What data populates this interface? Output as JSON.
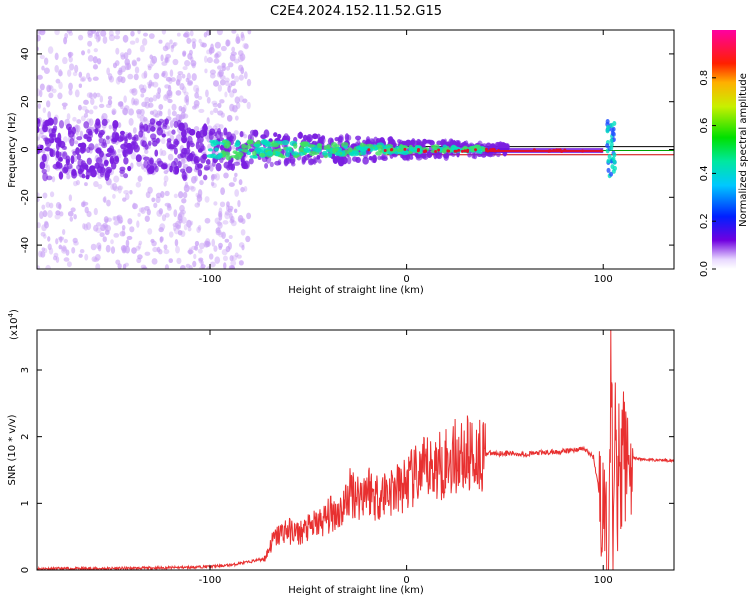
{
  "title": "C2E4.2024.152.11.52.G15",
  "spectrogram": {
    "xlabel": "Height of straight line (km)",
    "ylabel": "Frequency (Hz)",
    "xlim": [
      -188,
      136
    ],
    "ylim": [
      -50,
      50
    ],
    "xticks": [
      -100,
      0,
      100
    ],
    "xtick_labels": [
      "-100",
      "0",
      "100"
    ],
    "yticks": [
      -40,
      -20,
      0,
      20,
      40
    ],
    "ytick_labels": [
      "-40",
      "-20",
      "0",
      "20",
      "40"
    ],
    "colorbar": {
      "label": "Normalized spectral amplitude",
      "ticks": [
        0.0,
        0.2,
        0.4,
        0.6,
        0.8
      ],
      "tick_labels": [
        "0.0",
        "0.2",
        "0.4",
        "0.6",
        "0.8"
      ],
      "range": [
        0,
        1
      ]
    },
    "reference_lines": {
      "frequencies": [
        1.2,
        -0.4,
        -2.2
      ],
      "colors": [
        "#000000",
        "#00a000",
        "#d00000"
      ]
    },
    "colors": {
      "scatter": "#7a1fe0",
      "ridge": "#00e0c0",
      "peak": "#e0102a"
    }
  },
  "chart_data": {
    "type": "line",
    "xlabel": "Height of straight line (km)",
    "ylabel": "SNR (10 * v/v)",
    "y_multiplier": "(x10",
    "y_multiplier_exp": "4",
    "y_multiplier_close": ")",
    "xlim": [
      -188,
      136
    ],
    "ylim": [
      0,
      3.6
    ],
    "xticks": [
      -100,
      0,
      100
    ],
    "xtick_labels": [
      "-100",
      "0",
      "100"
    ],
    "yticks": [
      0,
      1,
      2,
      3
    ],
    "ytick_labels": [
      "0",
      "1",
      "2",
      "3"
    ],
    "color": "#e83030",
    "series": [
      {
        "x": [
          -188,
          -160,
          -130,
          -110,
          -95,
          -88,
          -85,
          -80,
          -72,
          -68,
          -62,
          -55,
          -48,
          -42,
          -38,
          -33,
          -28,
          -24,
          -20,
          -16,
          -12,
          -8,
          -4,
          0,
          5,
          10,
          15,
          20,
          25,
          30,
          40,
          50,
          60,
          70,
          80,
          90,
          95,
          100,
          103,
          104,
          105,
          106,
          107,
          108,
          109,
          110,
          111,
          112,
          115,
          120,
          128,
          136
        ],
        "values": [
          0.02,
          0.02,
          0.03,
          0.04,
          0.06,
          0.08,
          0.1,
          0.12,
          0.18,
          0.45,
          0.6,
          0.55,
          0.65,
          0.75,
          0.85,
          0.9,
          1.2,
          1.1,
          1.25,
          1.1,
          1.15,
          1.2,
          1.2,
          1.3,
          1.4,
          1.5,
          1.55,
          1.62,
          1.7,
          1.72,
          1.75,
          1.75,
          1.74,
          1.76,
          1.78,
          1.82,
          1.7,
          0.8,
          0.1,
          3.4,
          0.6,
          2.8,
          0.5,
          2.5,
          1.2,
          2.0,
          1.6,
          1.7,
          1.68,
          1.66,
          1.65,
          1.64
        ]
      }
    ]
  }
}
